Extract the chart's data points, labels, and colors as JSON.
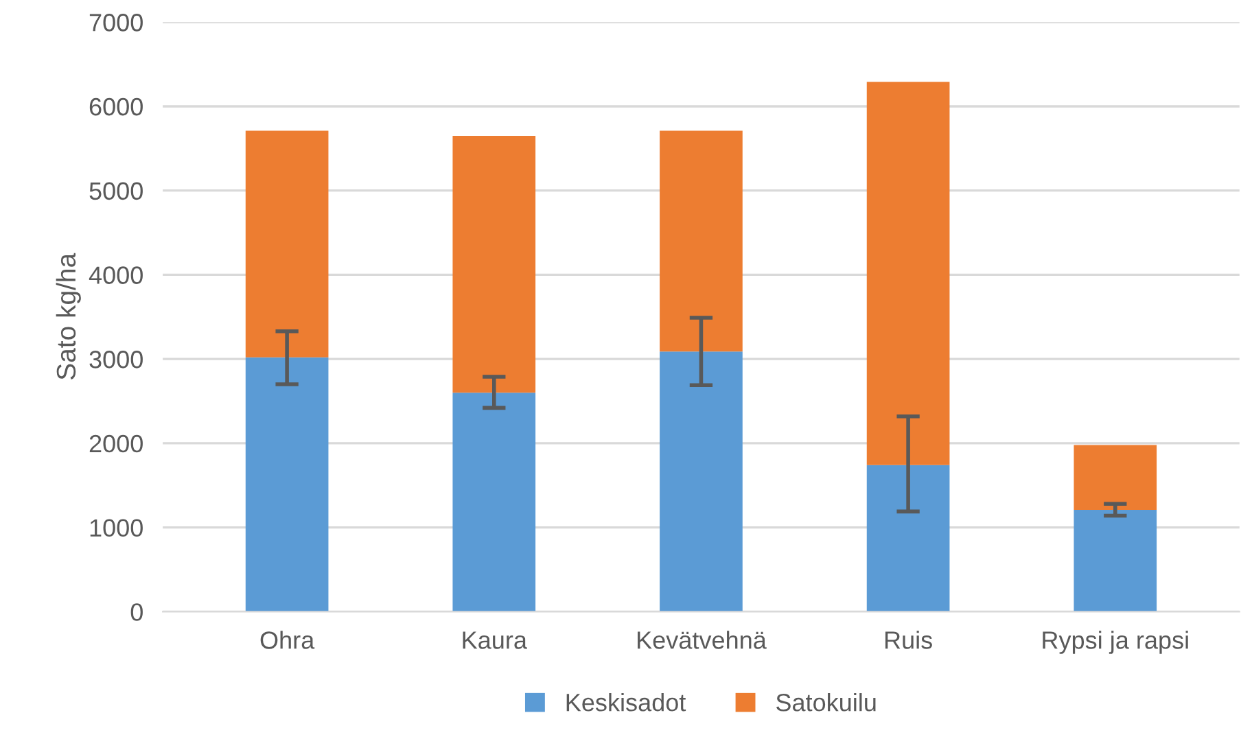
{
  "chart_data": {
    "type": "bar",
    "stacked": true,
    "ylabel": "Sato kg/ha",
    "categories": [
      "Ohra",
      "Kaura",
      "Kevätvehnä",
      "Ruis",
      "Rypsi ja rapsi"
    ],
    "series": [
      {
        "name": "Keskisadot",
        "color": "#5b9bd5",
        "values": [
          3020,
          2600,
          3090,
          1740,
          1210
        ],
        "errors": [
          [
            2700,
            3330
          ],
          [
            2420,
            2790
          ],
          [
            2690,
            3490
          ],
          [
            1190,
            2320
          ],
          [
            1140,
            1280
          ]
        ]
      },
      {
        "name": "Satokuilu",
        "color": "#ed7d31",
        "values": [
          2690,
          3050,
          2620,
          4550,
          770
        ]
      }
    ],
    "ylim": [
      0,
      7000
    ],
    "yticks": [
      0,
      1000,
      2000,
      3000,
      4000,
      5000,
      6000,
      7000
    ],
    "grid": "y",
    "legend": "bottom"
  }
}
